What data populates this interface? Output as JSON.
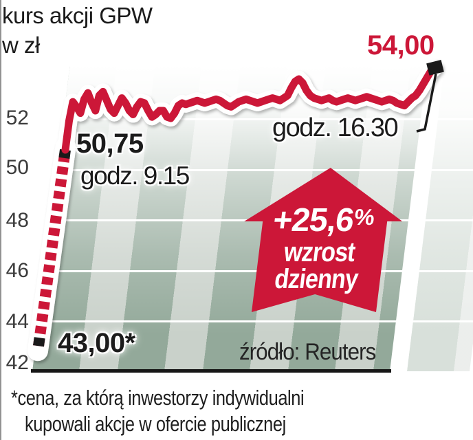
{
  "title": {
    "line1": "kurs akcji GPW",
    "line2": "w zł"
  },
  "y_axis": {
    "ticks": [
      "52",
      "50",
      "48",
      "46",
      "44",
      "42"
    ]
  },
  "labels": {
    "end_value": "54,00",
    "end_time": "godz. 16.30",
    "open_value": "50,75",
    "open_time": "godz. 9.15",
    "ipo_value": "43,00*",
    "source": "źródło: Reuters"
  },
  "badge": {
    "pct": "+25,6",
    "pct_symbol": "%",
    "word1": "wzrost",
    "word2": "dzienny"
  },
  "footnote": {
    "line1": "*cena, za którą inwestorzy indywidualni",
    "line2": "kupowali akcje w ofercie publicznej"
  },
  "colors": {
    "red": "#cc1738",
    "stripe_dark": "#93a99a",
    "stripe_light": "#c9d1ca",
    "grid": "#ffffff",
    "baseline": "#161616",
    "text": "#1b1b1b"
  },
  "chart_data": {
    "type": "line",
    "title": "kurs akcji GPW",
    "ylabel": "w zł",
    "ylim": [
      42,
      54.6
    ],
    "yticks": [
      42,
      44,
      46,
      48,
      50,
      52
    ],
    "grid": "horizontal white lines on striped green background",
    "legend": "none",
    "change_pct": "+25,6% wzrost dzienny",
    "source": "Reuters",
    "key_points": [
      {
        "value": 43.0,
        "label": "43,00*",
        "note": "cena w ofercie publicznej"
      },
      {
        "value": 50.75,
        "label": "50,75",
        "time": "godz. 9.15"
      },
      {
        "value": 54.0,
        "label": "54,00",
        "time": "godz. 16.30"
      }
    ],
    "pre_session": {
      "style": "dashed",
      "from_value": 43.0,
      "to_value": 50.75
    },
    "intraday": {
      "style": "solid",
      "time_start": "9.15",
      "time_end": "16.30",
      "values": [
        50.75,
        51.9,
        52.65,
        52.45,
        52.2,
        52.75,
        53.0,
        52.6,
        52.3,
        52.9,
        53.05,
        52.7,
        52.35,
        52.2,
        52.5,
        52.8,
        52.6,
        52.3,
        52.15,
        52.45,
        52.65,
        52.6,
        52.3,
        52.05,
        52.15,
        52.3,
        52.3,
        52.05,
        52.0,
        52.2,
        52.5,
        52.6,
        52.55,
        52.6,
        52.65,
        52.7,
        52.65,
        52.6,
        52.65,
        52.7,
        52.75,
        52.7,
        52.6,
        52.5,
        52.45,
        52.55,
        52.65,
        52.7,
        52.75,
        52.7,
        52.65,
        52.6,
        52.65,
        52.7,
        52.75,
        52.8,
        52.75,
        52.7,
        52.8,
        52.9,
        53.2,
        53.45,
        53.55,
        53.4,
        53.1,
        52.9,
        52.8,
        52.75,
        52.7,
        52.75,
        52.8,
        52.7,
        52.65,
        52.7,
        52.75,
        52.8,
        52.75,
        52.7,
        52.75,
        52.8,
        52.85,
        52.8,
        52.75,
        52.7,
        52.65,
        52.7,
        52.75,
        52.7,
        52.6,
        52.55,
        52.5,
        52.65,
        52.8,
        52.9,
        53.1,
        53.35,
        53.6,
        53.85,
        54.0
      ]
    }
  }
}
